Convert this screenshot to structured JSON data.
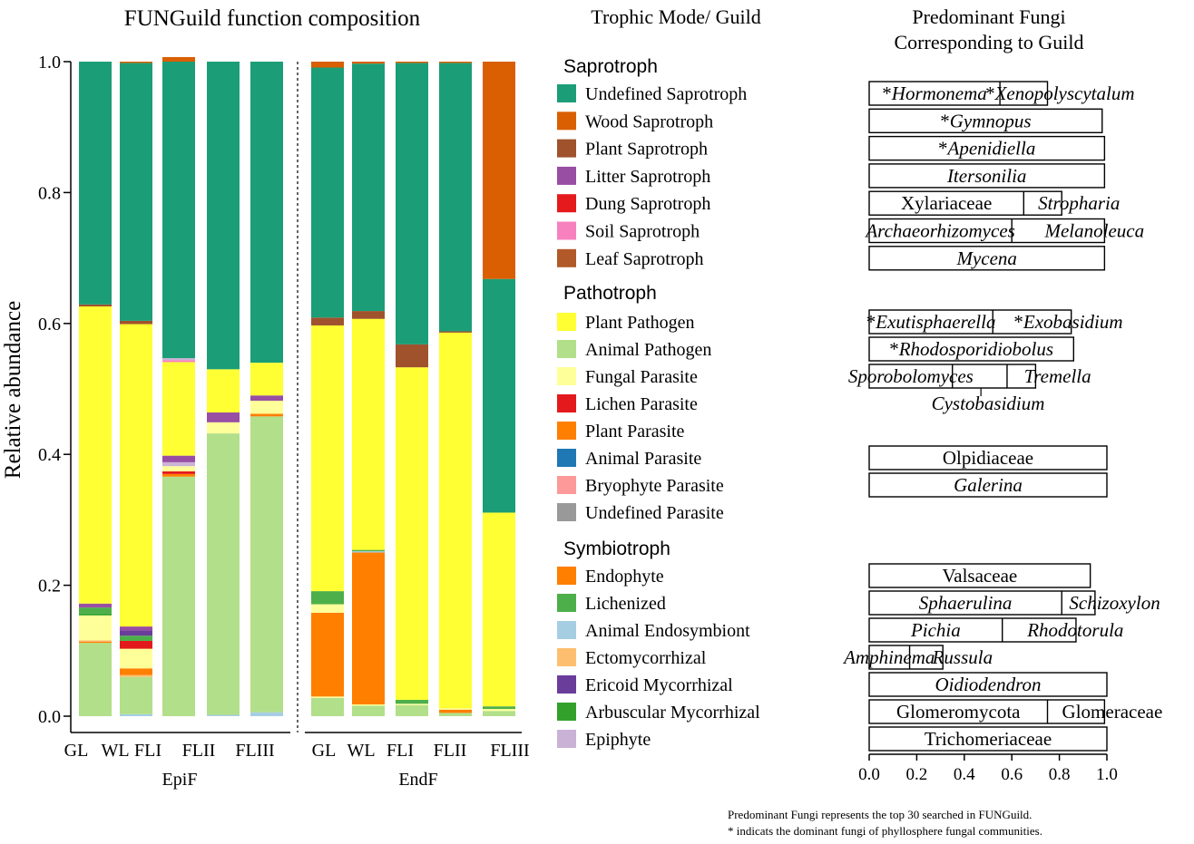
{
  "chart_data": {
    "type": "bar",
    "title": "FUNGuild function composition",
    "ylabel": "Relative abundance",
    "ylim": [
      0,
      1
    ],
    "yticks": [
      "0.0",
      "0.2",
      "0.4",
      "0.6",
      "0.8",
      "1.0"
    ],
    "ytick_values": [
      0.0,
      0.2,
      0.4,
      0.6,
      0.8,
      1.0
    ],
    "groups": [
      {
        "name": "EpiF",
        "categories": [
          "GL",
          "WL",
          "FLI",
          "FLII",
          "FLIII"
        ]
      },
      {
        "name": "EndF",
        "categories": [
          "GL",
          "WL",
          "FLI",
          "FLII",
          "FLIII"
        ]
      }
    ],
    "bars": [
      {
        "group": "EpiF",
        "category": "GL",
        "segments": [
          {
            "series": "Animal Pathogen",
            "value": 0.112
          },
          {
            "series": "Plant Parasite",
            "value": 0.002
          },
          {
            "series": "Ectomycorrhizal",
            "value": 0.002
          },
          {
            "series": "Fungal Parasite",
            "value": 0.038
          },
          {
            "series": "Arbuscular Mycorrhizal",
            "value": 0.003
          },
          {
            "series": "Lichenized",
            "value": 0.009
          },
          {
            "series": "Litter Saprotroph",
            "value": 0.006
          },
          {
            "series": "Plant Pathogen",
            "value": 0.454
          },
          {
            "series": "Plant Saprotroph",
            "value": 0.003
          },
          {
            "series": "Undefined Saprotroph",
            "value": 0.371
          }
        ]
      },
      {
        "group": "EpiF",
        "category": "WL",
        "segments": [
          {
            "series": "Animal Endosymbiont",
            "value": 0.003
          },
          {
            "series": "Animal Pathogen",
            "value": 0.057
          },
          {
            "series": "Ectomycorrhizal",
            "value": 0.003
          },
          {
            "series": "Plant Parasite",
            "value": 0.01
          },
          {
            "series": "Fungal Parasite",
            "value": 0.03
          },
          {
            "series": "Lichen Parasite",
            "value": 0.012
          },
          {
            "series": "Lichenized",
            "value": 0.008
          },
          {
            "series": "Ericoid Mycorrhizal",
            "value": 0.008
          },
          {
            "series": "Litter Saprotroph",
            "value": 0.006
          },
          {
            "series": "Plant Pathogen",
            "value": 0.462
          },
          {
            "series": "Plant Saprotroph",
            "value": 0.005
          },
          {
            "series": "Undefined Saprotroph",
            "value": 0.394
          },
          {
            "series": "Wood Saprotroph",
            "value": 0.002
          }
        ]
      },
      {
        "group": "EpiF",
        "category": "FLI",
        "segments": [
          {
            "series": "Animal Pathogen",
            "value": 0.366
          },
          {
            "series": "Plant Parasite",
            "value": 0.004
          },
          {
            "series": "Lichen Parasite",
            "value": 0.004
          },
          {
            "series": "Fungal Parasite",
            "value": 0.008
          },
          {
            "series": "Epiphyte",
            "value": 0.006
          },
          {
            "series": "Litter Saprotroph",
            "value": 0.01
          },
          {
            "series": "Plant Pathogen",
            "value": 0.143
          },
          {
            "series": "Soil Saprotroph",
            "value": 0.003
          },
          {
            "series": "Epiphyte",
            "value": 0.003
          },
          {
            "series": "Undefined Saprotroph",
            "value": 0.453
          },
          {
            "series": "Wood Saprotroph",
            "value": 0.007
          }
        ]
      },
      {
        "group": "EpiF",
        "category": "FLII",
        "segments": [
          {
            "series": "Animal Endosymbiont",
            "value": 0.002
          },
          {
            "series": "Animal Pathogen",
            "value": 0.43
          },
          {
            "series": "Fungal Parasite",
            "value": 0.017
          },
          {
            "series": "Litter Saprotroph",
            "value": 0.015
          },
          {
            "series": "Plant Pathogen",
            "value": 0.066
          },
          {
            "series": "Undefined Saprotroph",
            "value": 0.47
          }
        ]
      },
      {
        "group": "EpiF",
        "category": "FLIII",
        "segments": [
          {
            "series": "Animal Endosymbiont",
            "value": 0.006
          },
          {
            "series": "Animal Pathogen",
            "value": 0.452
          },
          {
            "series": "Plant Parasite",
            "value": 0.004
          },
          {
            "series": "Fungal Parasite",
            "value": 0.02
          },
          {
            "series": "Litter Saprotroph",
            "value": 0.008
          },
          {
            "series": "Plant Pathogen",
            "value": 0.05
          },
          {
            "series": "Undefined Saprotroph",
            "value": 0.46
          }
        ]
      },
      {
        "group": "EndF",
        "category": "GL",
        "segments": [
          {
            "series": "Animal Pathogen",
            "value": 0.028
          },
          {
            "series": "Fungal Parasite",
            "value": 0.002
          },
          {
            "series": "Plant Parasite",
            "value": 0.128
          },
          {
            "series": "Fungal Parasite",
            "value": 0.013
          },
          {
            "series": "Lichenized",
            "value": 0.02
          },
          {
            "series": "Plant Pathogen",
            "value": 0.406
          },
          {
            "series": "Plant Saprotroph",
            "value": 0.012
          },
          {
            "series": "Undefined Saprotroph",
            "value": 0.382
          },
          {
            "series": "Wood Saprotroph",
            "value": 0.009
          }
        ]
      },
      {
        "group": "EndF",
        "category": "WL",
        "segments": [
          {
            "series": "Animal Pathogen",
            "value": 0.016
          },
          {
            "series": "Fungal Parasite",
            "value": 0.002
          },
          {
            "series": "Plant Parasite",
            "value": 0.232
          },
          {
            "series": "Animal Endosymbiont",
            "value": 0.002
          },
          {
            "series": "Lichenized",
            "value": 0.002
          },
          {
            "series": "Plant Pathogen",
            "value": 0.353
          },
          {
            "series": "Plant Saprotroph",
            "value": 0.012
          },
          {
            "series": "Undefined Saprotroph",
            "value": 0.378
          },
          {
            "series": "Wood Saprotroph",
            "value": 0.003
          }
        ]
      },
      {
        "group": "EndF",
        "category": "FLI",
        "segments": [
          {
            "series": "Animal Pathogen",
            "value": 0.017
          },
          {
            "series": "Fungal Parasite",
            "value": 0.002
          },
          {
            "series": "Lichenized",
            "value": 0.006
          },
          {
            "series": "Plant Pathogen",
            "value": 0.508
          },
          {
            "series": "Plant Saprotroph",
            "value": 0.035
          },
          {
            "series": "Undefined Saprotroph",
            "value": 0.43
          },
          {
            "series": "Wood Saprotroph",
            "value": 0.002
          }
        ]
      },
      {
        "group": "EndF",
        "category": "FLII",
        "segments": [
          {
            "series": "Animal Pathogen",
            "value": 0.005
          },
          {
            "series": "Plant Parasite",
            "value": 0.005
          },
          {
            "series": "Fungal Parasite",
            "value": 0.002
          },
          {
            "series": "Plant Pathogen",
            "value": 0.574
          },
          {
            "series": "Plant Saprotroph",
            "value": 0.002
          },
          {
            "series": "Undefined Saprotroph",
            "value": 0.41
          },
          {
            "series": "Wood Saprotroph",
            "value": 0.002
          }
        ]
      },
      {
        "group": "EndF",
        "category": "FLIII",
        "segments": [
          {
            "series": "Animal Pathogen",
            "value": 0.008
          },
          {
            "series": "Fungal Parasite",
            "value": 0.003
          },
          {
            "series": "Lichenized",
            "value": 0.004
          },
          {
            "series": "Plant Pathogen",
            "value": 0.296
          },
          {
            "series": "Undefined Saprotroph",
            "value": 0.357
          },
          {
            "series": "Wood Saprotroph",
            "value": 0.332
          }
        ]
      }
    ]
  },
  "legend": {
    "title": "Trophic Mode/ Guild",
    "groups": [
      {
        "name": "Saprotroph",
        "items": [
          {
            "label": "Undefined Saprotroph",
            "color": "#1b9e77"
          },
          {
            "label": "Wood Saprotroph",
            "color": "#d95f02"
          },
          {
            "label": "Plant Saprotroph",
            "color": "#a0522d"
          },
          {
            "label": "Litter Saprotroph",
            "color": "#984ea3"
          },
          {
            "label": "Dung Saprotroph",
            "color": "#e41a1c"
          },
          {
            "label": "Soil Saprotroph",
            "color": "#f781bf"
          },
          {
            "label": "Leaf Saprotroph",
            "color": "#b15928"
          }
        ]
      },
      {
        "name": "Pathotroph",
        "items": [
          {
            "label": "Plant Pathogen",
            "color": "#ffff33"
          },
          {
            "label": "Animal Pathogen",
            "color": "#b2df8a"
          },
          {
            "label": "Fungal Parasite",
            "color": "#ffff99"
          },
          {
            "label": "Lichen Parasite",
            "color": "#e31a1c"
          },
          {
            "label": "Plant Parasite",
            "color": "#ff7f00"
          },
          {
            "label": "Animal Parasite",
            "color": "#1f78b4"
          },
          {
            "label": "Bryophyte Parasite",
            "color": "#fb9a99"
          },
          {
            "label": "Undefined Parasite",
            "color": "#999999"
          }
        ]
      },
      {
        "name": "Symbiotroph",
        "items": [
          {
            "label": "Endophyte",
            "color": "#ff7f00"
          },
          {
            "label": "Lichenized",
            "color": "#4daf4a"
          },
          {
            "label": "Animal Endosymbiont",
            "color": "#a6cee3"
          },
          {
            "label": "Ectomycorrhizal",
            "color": "#fdbf6f"
          },
          {
            "label": "Ericoid Mycorrhizal",
            "color": "#6a3d9a"
          },
          {
            "label": "Arbuscular Mycorrhizal",
            "color": "#33a02c"
          },
          {
            "label": "Epiphyte",
            "color": "#cab2d6"
          }
        ]
      }
    ]
  },
  "fungi_panel": {
    "title_line1": "Predominant Fungi",
    "title_line2": "Corresponding to Guild",
    "xticks": [
      "0.0",
      "0.2",
      "0.4",
      "0.6",
      "0.8",
      "1.0"
    ],
    "xtick_values": [
      0.0,
      0.2,
      0.4,
      0.6,
      0.8,
      1.0
    ],
    "rows": [
      {
        "guild": "Undefined Saprotroph",
        "box_end": 0.75,
        "splits": [
          0.55
        ],
        "labels": [
          {
            "text": "Hormonema",
            "star": true
          },
          {
            "text": "Xenopolyscytalum",
            "star": true
          }
        ]
      },
      {
        "guild": "Wood Saprotroph",
        "box_end": 0.98,
        "splits": [],
        "labels": [
          {
            "text": "Gymnopus",
            "star": true
          }
        ]
      },
      {
        "guild": "Plant Saprotroph",
        "box_end": 0.99,
        "splits": [],
        "labels": [
          {
            "text": "Apenidiella",
            "star": true
          }
        ]
      },
      {
        "guild": "Litter Saprotroph",
        "box_end": 0.99,
        "splits": [],
        "labels": [
          {
            "text": "Itersonilia",
            "star": false
          }
        ]
      },
      {
        "guild": "Dung Saprotroph",
        "box_end": 0.81,
        "splits": [
          0.65
        ],
        "labels": [
          {
            "text": "Xylariaceae",
            "star": false
          },
          {
            "text": "Stropharia",
            "star": false
          }
        ]
      },
      {
        "guild": "Soil Saprotroph",
        "box_end": 0.99,
        "splits": [
          0.6
        ],
        "labels": [
          {
            "text": "Archaeorhizomyces",
            "star": false
          },
          {
            "text": "Melanoleuca",
            "star": false
          }
        ]
      },
      {
        "guild": "Leaf Saprotroph",
        "box_end": 0.99,
        "splits": [],
        "labels": [
          {
            "text": "Mycena",
            "star": false
          }
        ]
      },
      {
        "guild": "Plant Pathogen",
        "box_end": 0.85,
        "splits": [
          0.52
        ],
        "labels": [
          {
            "text": "Exutisphaerella",
            "star": true
          },
          {
            "text": "Exobasidium",
            "star": true
          }
        ]
      },
      {
        "guild": "Animal Pathogen",
        "box_end": 0.86,
        "splits": [],
        "labels": [
          {
            "text": "Rhodosporidiobolus",
            "star": true
          }
        ]
      },
      {
        "guild": "Fungal Parasite",
        "box_end": 0.7,
        "splits": [
          0.35,
          0.58
        ],
        "labels": [
          {
            "text": "Sporobolomyces",
            "star": false
          },
          {
            "text": "Tremella",
            "star": false
          }
        ]
      },
      {
        "guild": "Lichen Parasite",
        "box_end": 0,
        "splits": [],
        "labels": [
          {
            "text": "Cystobasidium",
            "star": false
          }
        ]
      },
      {
        "guild": "Plant Parasite",
        "box_end": 0,
        "splits": [],
        "labels": []
      },
      {
        "guild": "Animal Parasite",
        "box_end": 1.0,
        "splits": [],
        "labels": [
          {
            "text": "Olpidiaceae",
            "star": false
          }
        ]
      },
      {
        "guild": "Bryophyte Parasite",
        "box_end": 1.0,
        "splits": [],
        "labels": [
          {
            "text": "Galerina",
            "star": false
          }
        ]
      },
      {
        "guild": "Undefined Parasite",
        "box_end": 0,
        "splits": [],
        "labels": []
      },
      {
        "guild": "Endophyte",
        "box_end": 0.93,
        "splits": [],
        "labels": [
          {
            "text": "Valsaceae",
            "star": false
          }
        ]
      },
      {
        "guild": "Lichenized",
        "box_end": 0.95,
        "splits": [
          0.81
        ],
        "labels": [
          {
            "text": "Sphaerulina",
            "star": false
          },
          {
            "text": "Schizoxylon",
            "star": false
          }
        ]
      },
      {
        "guild": "Animal Endosymbiont",
        "box_end": 0.87,
        "splits": [
          0.56
        ],
        "labels": [
          {
            "text": "Pichia",
            "star": false
          },
          {
            "text": "Rhodotorula",
            "star": false
          }
        ]
      },
      {
        "guild": "Ectomycorrhizal",
        "box_end": 0.31,
        "splits": [
          0.17
        ],
        "labels": [
          {
            "text": "Amphinema",
            "star": false
          },
          {
            "text": "Russula",
            "star": false
          }
        ]
      },
      {
        "guild": "Ericoid Mycorrhizal",
        "box_end": 1.0,
        "splits": [],
        "labels": [
          {
            "text": "Oidiodendron",
            "star": false
          }
        ]
      },
      {
        "guild": "Arbuscular Mycorrhizal",
        "box_end": 0.99,
        "splits": [
          0.75
        ],
        "labels": [
          {
            "text": "Glomeromycota",
            "star": false
          },
          {
            "text": "Glomeraceae",
            "star": false
          }
        ]
      },
      {
        "guild": "Epiphyte",
        "box_end": 1.0,
        "splits": [],
        "labels": [
          {
            "text": "Trichomeriaceae",
            "star": false
          }
        ]
      }
    ]
  },
  "footnote": {
    "line1": "Predominant Fungi represents the top 30 searched in FUNGuild.",
    "line2": "* indicats the dominant fungi of phyllosphere fungal communities."
  }
}
